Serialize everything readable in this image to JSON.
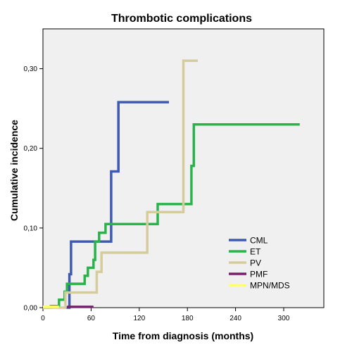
{
  "chart_data": {
    "type": "line",
    "step": true,
    "title": "Thrombotic complications",
    "xlabel": "Time from diagnosis (months)",
    "ylabel": "Cumulative incidence",
    "xlim": [
      0,
      350
    ],
    "ylim": [
      0,
      0.35
    ],
    "x_ticks": [
      0,
      60,
      120,
      180,
      240,
      300
    ],
    "x_tick_labels": [
      "0",
      "60",
      "120",
      "180",
      "240",
      "300"
    ],
    "y_ticks": [
      0,
      0.1,
      0.2,
      0.3
    ],
    "y_tick_labels": [
      "0,00",
      "0,10",
      "0,20",
      "0,30"
    ],
    "background": "#f0f0f0",
    "grid": false,
    "legend_position": "bottom-right",
    "series": [
      {
        "name": "CML",
        "color": "#3f5bb0",
        "x": [
          28,
          33,
          35,
          85,
          94,
          157
        ],
        "y": [
          0,
          0.042,
          0.083,
          0.171,
          0.258,
          0.258
        ]
      },
      {
        "name": "ET",
        "color": "#2bb34b",
        "x": [
          0,
          10,
          20,
          27,
          30,
          52,
          56,
          63,
          65,
          70,
          78,
          143,
          185,
          188,
          320
        ],
        "y": [
          0,
          0.002,
          0.01,
          0.02,
          0.03,
          0.04,
          0.05,
          0.06,
          0.083,
          0.094,
          0.105,
          0.13,
          0.178,
          0.23,
          0.23
        ]
      },
      {
        "name": "PV",
        "color": "#d6cc9b",
        "x": [
          0,
          28,
          67,
          73,
          130,
          175,
          193
        ],
        "y": [
          0,
          0.019,
          0.045,
          0.069,
          0.12,
          0.31,
          0.31
        ]
      },
      {
        "name": "PMF",
        "color": "#76206e",
        "x": [
          30,
          63
        ],
        "y": [
          0.001,
          0.001
        ]
      },
      {
        "name": "MPN/MDS",
        "color": "#ffff66",
        "x": [
          0,
          20
        ],
        "y": [
          0.001,
          0.001
        ]
      }
    ]
  }
}
